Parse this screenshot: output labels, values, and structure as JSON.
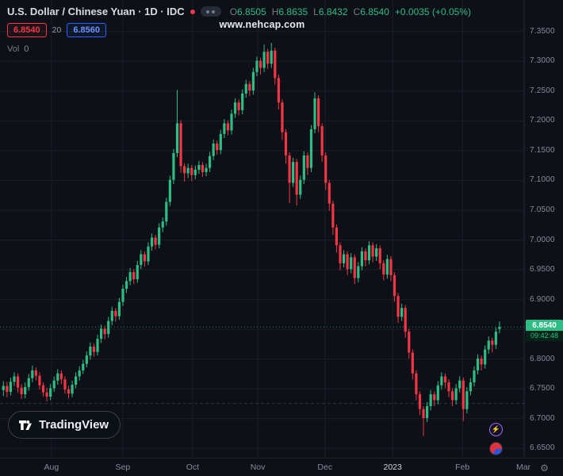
{
  "header": {
    "title": "U.S. Dollar / Chinese Yuan · 1D · IDC",
    "ohlc": {
      "o_key": "O",
      "o": "6.8505",
      "h_key": "H",
      "h": "6.8635",
      "l_key": "L",
      "l": "6.8432",
      "c_key": "C",
      "c": "6.8540",
      "change": "+0.0035 (+0.05%)"
    },
    "sell_price": "6.8540",
    "spread": "20",
    "buy_price": "6.8560",
    "vol_label": "Vol",
    "vol_value": "0"
  },
  "watermark": "www.nehcap.com",
  "logo_text": "TradingView",
  "axis": {
    "last_price": "6.8540",
    "countdown": "09:42:48"
  },
  "colors": {
    "up": "#2ebd85",
    "down": "#f23645",
    "grid": "#1a1e2a",
    "bg": "#0d1017"
  },
  "chart_data": {
    "type": "candlestick",
    "title": "U.S. Dollar / Chinese Yuan",
    "timeframe": "1D",
    "exchange": "IDC",
    "ylim": [
      6.633,
      7.403
    ],
    "data_span": 0.952,
    "last_price": 6.854,
    "dashed_level": 6.7254,
    "y_ticks": [
      "7.3500",
      "7.3000",
      "7.2500",
      "7.2000",
      "7.1500",
      "7.1000",
      "7.0500",
      "7.0000",
      "6.9500",
      "6.9000",
      "6.8500",
      "6.8000",
      "6.7500",
      "6.7000",
      "6.6500"
    ],
    "x_ticks": [
      {
        "label": "Aug",
        "f": 0.098
      },
      {
        "label": "Sep",
        "f": 0.234
      },
      {
        "label": "Oct",
        "f": 0.367
      },
      {
        "label": "Nov",
        "f": 0.491
      },
      {
        "label": "Dec",
        "f": 0.619
      },
      {
        "label": "2023",
        "f": 0.748
      },
      {
        "label": "Feb",
        "f": 0.881
      },
      {
        "label": "Mar",
        "f": 0.997
      }
    ],
    "candles": [
      [
        6.748,
        6.763,
        6.738,
        6.755
      ],
      [
        6.755,
        6.762,
        6.736,
        6.745
      ],
      [
        6.745,
        6.769,
        6.739,
        6.762
      ],
      [
        6.762,
        6.778,
        6.755,
        6.771
      ],
      [
        6.771,
        6.776,
        6.744,
        6.752
      ],
      [
        6.752,
        6.758,
        6.733,
        6.741
      ],
      [
        6.741,
        6.761,
        6.734,
        6.753
      ],
      [
        6.753,
        6.775,
        6.747,
        6.768
      ],
      [
        6.768,
        6.789,
        6.761,
        6.781
      ],
      [
        6.781,
        6.786,
        6.764,
        6.772
      ],
      [
        6.772,
        6.778,
        6.749,
        6.756
      ],
      [
        6.756,
        6.761,
        6.737,
        6.744
      ],
      [
        6.744,
        6.752,
        6.729,
        6.737
      ],
      [
        6.737,
        6.758,
        6.731,
        6.751
      ],
      [
        6.751,
        6.771,
        6.745,
        6.764
      ],
      [
        6.764,
        6.783,
        6.757,
        6.776
      ],
      [
        6.776,
        6.781,
        6.758,
        6.766
      ],
      [
        6.766,
        6.771,
        6.742,
        6.749
      ],
      [
        6.749,
        6.755,
        6.734,
        6.742
      ],
      [
        6.742,
        6.764,
        6.736,
        6.757
      ],
      [
        6.757,
        6.778,
        6.751,
        6.771
      ],
      [
        6.771,
        6.788,
        6.764,
        6.781
      ],
      [
        6.781,
        6.799,
        6.775,
        6.792
      ],
      [
        6.792,
        6.813,
        6.786,
        6.806
      ],
      [
        6.806,
        6.828,
        6.799,
        6.821
      ],
      [
        6.821,
        6.826,
        6.804,
        6.812
      ],
      [
        6.812,
        6.841,
        6.806,
        6.834
      ],
      [
        6.834,
        6.858,
        6.827,
        6.851
      ],
      [
        6.851,
        6.856,
        6.833,
        6.842
      ],
      [
        6.842,
        6.871,
        6.836,
        6.864
      ],
      [
        6.864,
        6.888,
        6.857,
        6.881
      ],
      [
        6.881,
        6.886,
        6.863,
        6.872
      ],
      [
        6.872,
        6.903,
        6.866,
        6.896
      ],
      [
        6.896,
        6.925,
        6.889,
        6.918
      ],
      [
        6.918,
        6.938,
        6.911,
        6.931
      ],
      [
        6.931,
        6.953,
        6.924,
        6.946
      ],
      [
        6.946,
        6.951,
        6.926,
        6.934
      ],
      [
        6.934,
        6.965,
        6.928,
        6.958
      ],
      [
        6.958,
        6.983,
        6.951,
        6.976
      ],
      [
        6.976,
        6.981,
        6.955,
        6.964
      ],
      [
        6.964,
        6.996,
        6.958,
        6.989
      ],
      [
        6.989,
        7.011,
        6.982,
        7.004
      ],
      [
        7.004,
        7.009,
        6.984,
        6.992
      ],
      [
        6.992,
        7.028,
        6.986,
        7.021
      ],
      [
        7.021,
        7.038,
        7.013,
        7.031
      ],
      [
        7.031,
        7.071,
        7.024,
        7.064
      ],
      [
        7.064,
        7.108,
        7.057,
        7.101
      ],
      [
        7.101,
        7.153,
        7.094,
        7.146
      ],
      [
        7.146,
        7.252,
        7.139,
        7.196
      ],
      [
        7.196,
        7.201,
        7.113,
        7.124
      ],
      [
        7.124,
        7.129,
        7.098,
        7.112
      ],
      [
        7.112,
        7.128,
        7.104,
        7.121
      ],
      [
        7.121,
        7.126,
        7.099,
        7.109
      ],
      [
        7.109,
        7.125,
        7.102,
        7.118
      ],
      [
        7.118,
        7.133,
        7.111,
        7.126
      ],
      [
        7.126,
        7.131,
        7.106,
        7.114
      ],
      [
        7.114,
        7.128,
        7.107,
        7.121
      ],
      [
        7.121,
        7.148,
        7.114,
        7.141
      ],
      [
        7.141,
        7.169,
        7.134,
        7.162
      ],
      [
        7.162,
        7.167,
        7.143,
        7.151
      ],
      [
        7.151,
        7.185,
        7.144,
        7.178
      ],
      [
        7.178,
        7.203,
        7.171,
        7.196
      ],
      [
        7.196,
        7.201,
        7.176,
        7.184
      ],
      [
        7.184,
        7.219,
        7.177,
        7.212
      ],
      [
        7.212,
        7.238,
        7.205,
        7.231
      ],
      [
        7.231,
        7.236,
        7.209,
        7.218
      ],
      [
        7.218,
        7.253,
        7.211,
        7.246
      ],
      [
        7.246,
        7.269,
        7.239,
        7.262
      ],
      [
        7.262,
        7.267,
        7.242,
        7.251
      ],
      [
        7.251,
        7.289,
        7.244,
        7.282
      ],
      [
        7.282,
        7.308,
        7.275,
        7.301
      ],
      [
        7.301,
        7.306,
        7.278,
        7.289
      ],
      [
        7.289,
        7.328,
        7.282,
        7.316
      ],
      [
        7.316,
        7.321,
        7.287,
        7.296
      ],
      [
        7.296,
        7.331,
        7.289,
        7.318
      ],
      [
        7.318,
        7.323,
        7.261,
        7.272
      ],
      [
        7.272,
        7.278,
        7.219,
        7.231
      ],
      [
        7.231,
        7.236,
        7.168,
        7.181
      ],
      [
        7.181,
        7.186,
        7.128,
        7.142
      ],
      [
        7.142,
        7.147,
        7.062,
        7.096
      ],
      [
        7.096,
        7.138,
        7.089,
        7.131
      ],
      [
        7.131,
        7.136,
        7.058,
        7.076
      ],
      [
        7.076,
        7.108,
        7.069,
        7.101
      ],
      [
        7.101,
        7.149,
        7.094,
        7.142
      ],
      [
        7.142,
        7.147,
        7.109,
        7.121
      ],
      [
        7.121,
        7.193,
        7.114,
        7.186
      ],
      [
        7.186,
        7.248,
        7.179,
        7.238
      ],
      [
        7.238,
        7.243,
        7.181,
        7.191
      ],
      [
        7.191,
        7.196,
        7.131,
        7.142
      ],
      [
        7.142,
        7.147,
        7.084,
        7.096
      ],
      [
        7.096,
        7.101,
        7.049,
        7.061
      ],
      [
        7.061,
        7.066,
        7.009,
        7.021
      ],
      [
        7.021,
        7.026,
        6.979,
        6.991
      ],
      [
        6.991,
        6.996,
        6.949,
        6.961
      ],
      [
        6.961,
        6.983,
        6.954,
        6.976
      ],
      [
        6.976,
        6.981,
        6.941,
        6.951
      ],
      [
        6.951,
        6.978,
        6.944,
        6.971
      ],
      [
        6.971,
        6.976,
        6.926,
        6.936
      ],
      [
        6.936,
        6.963,
        6.929,
        6.956
      ],
      [
        6.956,
        6.988,
        6.949,
        6.981
      ],
      [
        6.981,
        6.986,
        6.956,
        6.966
      ],
      [
        6.966,
        6.998,
        6.959,
        6.991
      ],
      [
        6.991,
        6.996,
        6.962,
        6.972
      ],
      [
        6.972,
        6.993,
        6.965,
        6.986
      ],
      [
        6.986,
        6.991,
        6.951,
        6.961
      ],
      [
        6.961,
        6.966,
        6.932,
        6.942
      ],
      [
        6.942,
        6.975,
        6.935,
        6.968
      ],
      [
        6.968,
        6.973,
        6.931,
        6.941
      ],
      [
        6.941,
        6.946,
        6.896,
        6.906
      ],
      [
        6.906,
        6.911,
        6.861,
        6.871
      ],
      [
        6.871,
        6.893,
        6.864,
        6.886
      ],
      [
        6.886,
        6.891,
        6.836,
        6.846
      ],
      [
        6.846,
        6.851,
        6.801,
        6.811
      ],
      [
        6.811,
        6.816,
        6.766,
        6.776
      ],
      [
        6.776,
        6.781,
        6.731,
        6.741
      ],
      [
        6.741,
        6.746,
        6.706,
        6.716
      ],
      [
        6.716,
        6.721,
        6.671,
        6.701
      ],
      [
        6.701,
        6.728,
        6.694,
        6.721
      ],
      [
        6.721,
        6.748,
        6.714,
        6.741
      ],
      [
        6.741,
        6.746,
        6.721,
        6.731
      ],
      [
        6.731,
        6.763,
        6.724,
        6.756
      ],
      [
        6.756,
        6.778,
        6.749,
        6.771
      ],
      [
        6.771,
        6.776,
        6.751,
        6.761
      ],
      [
        6.761,
        6.766,
        6.736,
        6.746
      ],
      [
        6.746,
        6.751,
        6.721,
        6.731
      ],
      [
        6.731,
        6.758,
        6.724,
        6.751
      ],
      [
        6.751,
        6.771,
        6.744,
        6.764
      ],
      [
        6.764,
        6.769,
        6.696,
        6.716
      ],
      [
        6.716,
        6.753,
        6.709,
        6.746
      ],
      [
        6.746,
        6.768,
        6.739,
        6.761
      ],
      [
        6.761,
        6.788,
        6.754,
        6.781
      ],
      [
        6.781,
        6.808,
        6.774,
        6.801
      ],
      [
        6.801,
        6.806,
        6.781,
        6.791
      ],
      [
        6.791,
        6.823,
        6.784,
        6.816
      ],
      [
        6.816,
        6.838,
        6.809,
        6.831
      ],
      [
        6.831,
        6.836,
        6.811,
        6.824
      ],
      [
        6.824,
        6.853,
        6.817,
        6.846
      ],
      [
        6.8505,
        6.8635,
        6.8432,
        6.854
      ]
    ]
  }
}
